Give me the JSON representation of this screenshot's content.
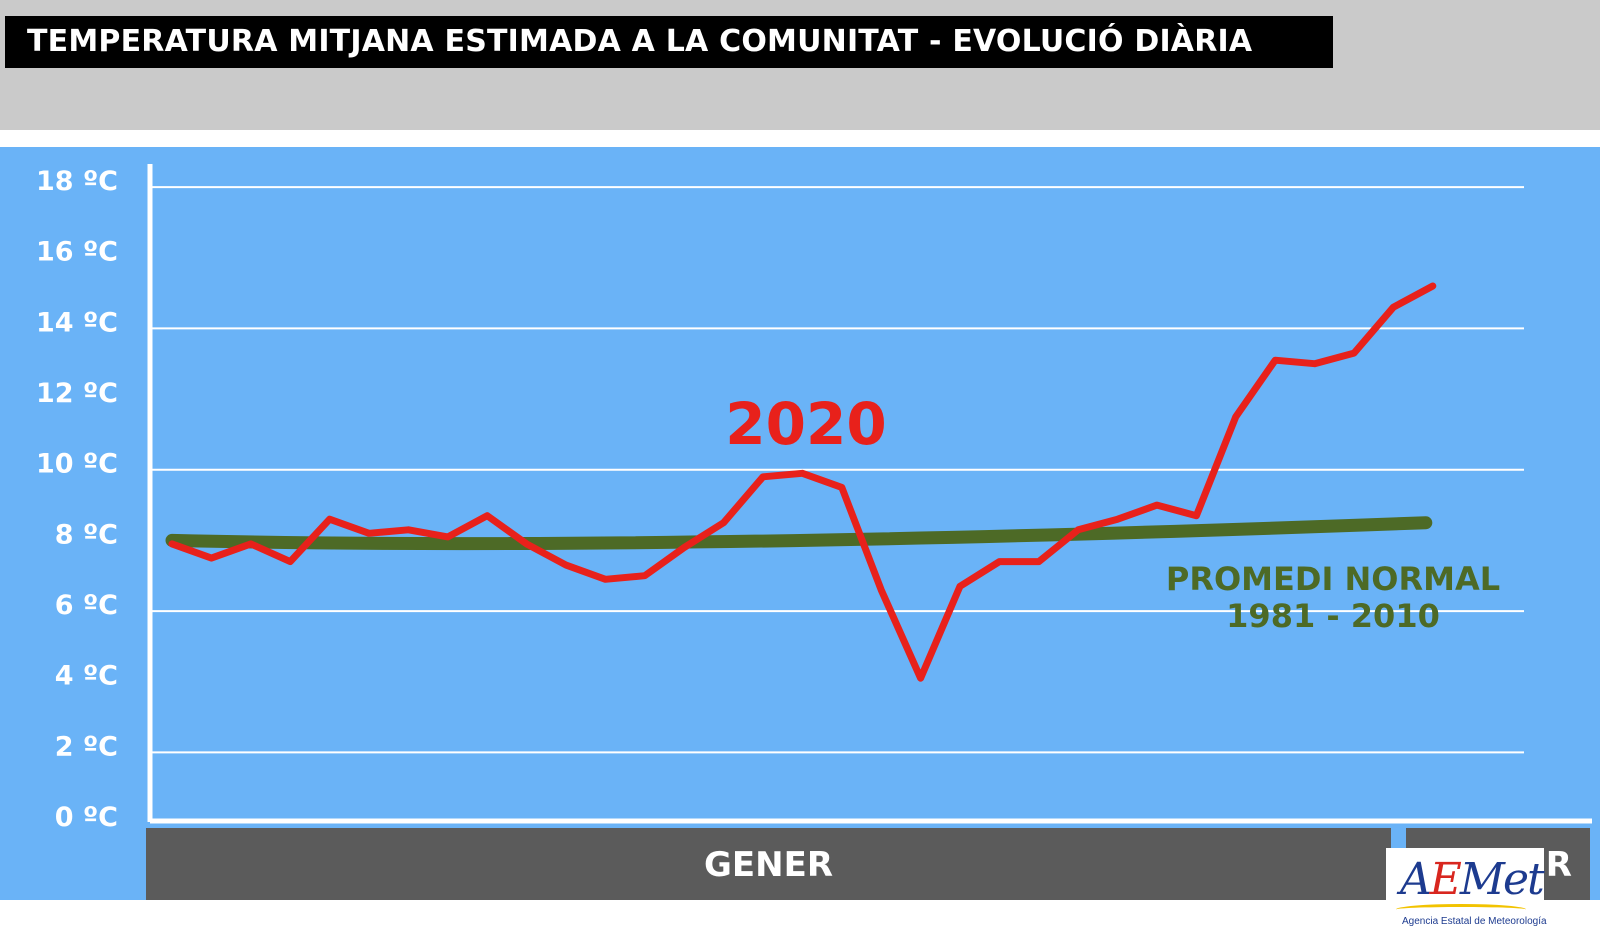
{
  "header": {
    "title": "TEMPERATURA MITJANA ESTIMADA A LA COMUNITAT - EVOLUCIÓ DIÀRIA"
  },
  "colors": {
    "background_top": "#cacaca",
    "chart_background": "#6ab3f7",
    "series_2020": "#e8211b",
    "series_normal": "#4d6a26",
    "month_bar": "#5b5b5b"
  },
  "logo": {
    "text": "AEMet",
    "subtitle": "Agencia Estatal de Meteorología"
  },
  "chart_data": {
    "type": "line",
    "title": "TEMPERATURA MITJANA ESTIMADA A LA COMUNITAT - EVOLUCIÓ DIÀRIA",
    "ylim": [
      0,
      18
    ],
    "yticks": [
      "0 ºC",
      "2 ºC",
      "4 ºC",
      "6 ºC",
      "8 ºC",
      "10 ºC",
      "12 ºC",
      "14 ºC",
      "16 ºC",
      "18 ºC"
    ],
    "x_months": [
      {
        "label": "GENER",
        "days": 31
      },
      {
        "label": "FEBRER",
        "days": 3
      }
    ],
    "series": [
      {
        "name": "2020",
        "color": "#e8211b",
        "x": [
          1,
          2,
          3,
          4,
          5,
          6,
          7,
          8,
          9,
          10,
          11,
          12,
          13,
          14,
          15,
          16,
          17,
          18,
          19,
          20,
          21,
          22,
          23,
          24,
          25,
          26,
          27,
          28,
          29,
          30,
          31,
          32,
          33,
          34
        ],
        "values": [
          7.7,
          7.3,
          7.7,
          7.2,
          8.4,
          8.0,
          8.1,
          7.9,
          8.5,
          7.7,
          7.1,
          6.7,
          6.8,
          7.6,
          8.3,
          9.6,
          9.7,
          9.3,
          6.4,
          3.9,
          6.5,
          7.2,
          7.2,
          8.1,
          8.4,
          8.8,
          8.5,
          11.3,
          12.9,
          12.8,
          13.1,
          14.4,
          15.0,
          null
        ]
      },
      {
        "name": "PROMEDI NORMAL 1981 - 2010",
        "color": "#4d6a26",
        "x": [
          1,
          33
        ],
        "values": [
          7.8,
          8.3
        ]
      }
    ],
    "series_labels": {
      "year": "2020",
      "normal_line1": "PROMEDI NORMAL",
      "normal_line2": "1981 - 2010"
    },
    "grid": true
  }
}
